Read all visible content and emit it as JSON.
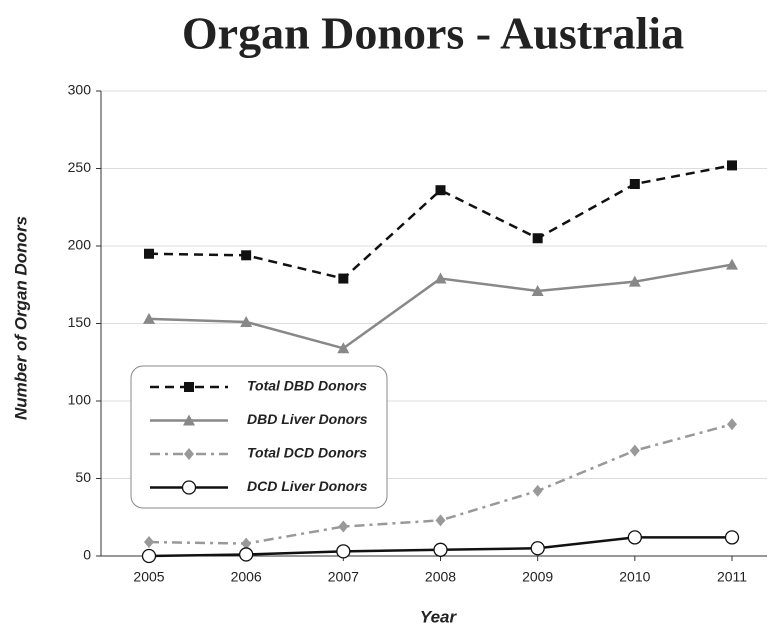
{
  "chart_data": {
    "type": "line",
    "title": "Organ Donors - Australia",
    "x_label": "Year",
    "y_label": "Number of Organ Donors",
    "categories": [
      "2005",
      "2006",
      "2007",
      "2008",
      "2009",
      "2010",
      "2011"
    ],
    "series": [
      {
        "name": "Total DBD Donors",
        "color": "#111111",
        "dash": "9,6",
        "marker": "square",
        "values": [
          195,
          194,
          179,
          236,
          205,
          240,
          252
        ]
      },
      {
        "name": "DBD Liver Donors",
        "color": "#888888",
        "dash": "none",
        "marker": "triangle",
        "values": [
          153,
          151,
          134,
          179,
          171,
          177,
          188
        ]
      },
      {
        "name": "Total DCD Donors",
        "color": "#999999",
        "dash": "10,5,3,5",
        "marker": "diamond",
        "values": [
          9,
          8,
          19,
          23,
          42,
          68,
          85
        ]
      },
      {
        "name": "DCD Liver Donors",
        "color": "#111111",
        "dash": "none",
        "marker": "circle",
        "values": [
          0,
          1,
          3,
          4,
          5,
          12,
          12
        ]
      }
    ],
    "ylim": [
      0,
      300
    ],
    "yticks": [
      0,
      50,
      100,
      150,
      200,
      250,
      300
    ],
    "grid": true
  }
}
